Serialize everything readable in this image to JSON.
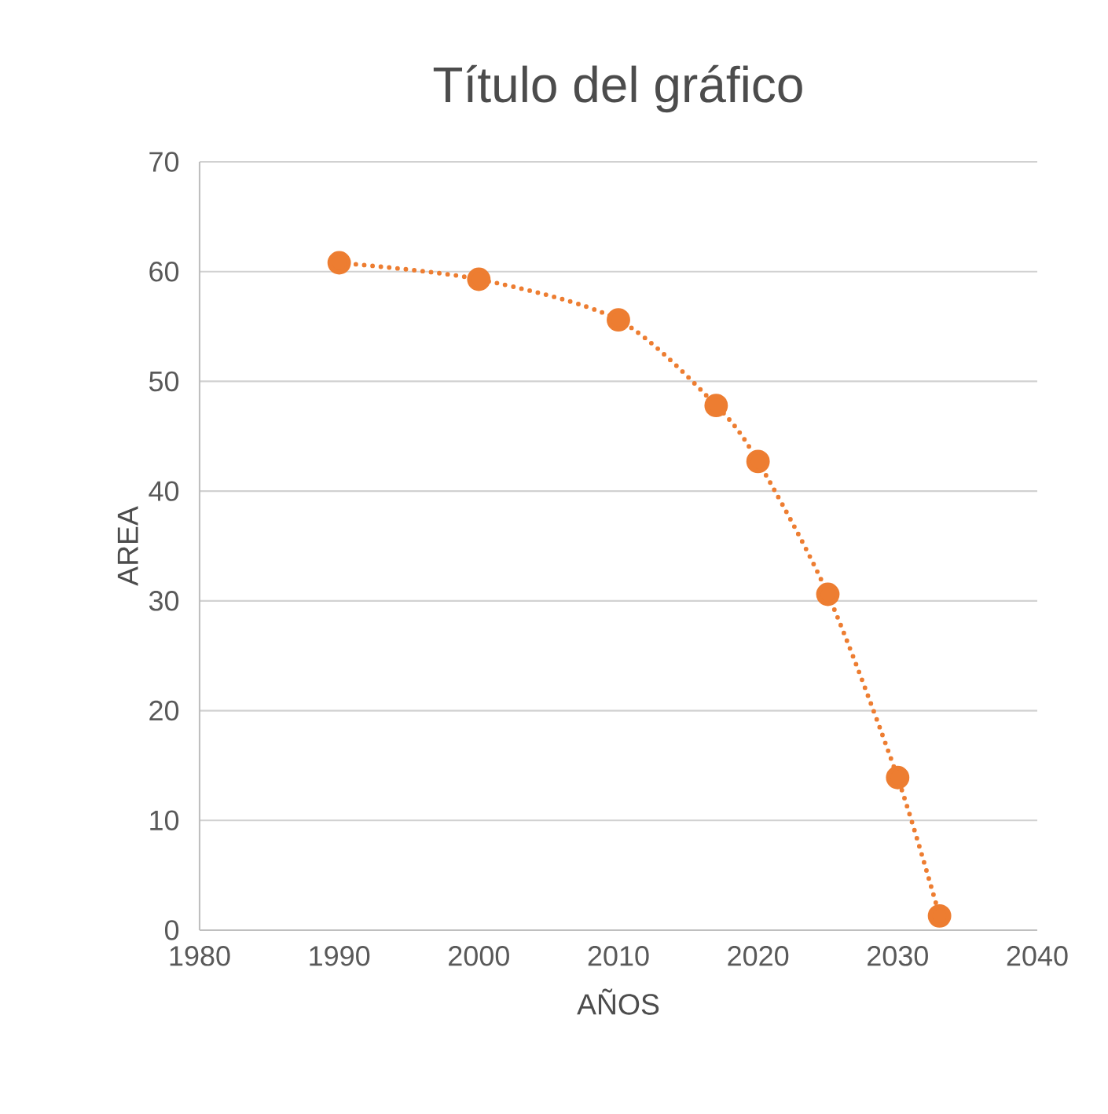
{
  "chart_data": {
    "type": "line",
    "title": "Título del gráfico",
    "xlabel": "AÑOS",
    "ylabel": "AREA",
    "x": [
      1990,
      2000,
      2010,
      2017,
      2020,
      2025,
      2030,
      2033
    ],
    "series": [
      {
        "color": "#ed7d31",
        "values": [
          60.8,
          59.3,
          55.6,
          47.8,
          42.7,
          30.6,
          13.9,
          1.3
        ]
      }
    ],
    "xlim": [
      1980,
      2040
    ],
    "ylim": [
      0,
      70
    ],
    "xticks": [
      1980,
      1990,
      2000,
      2010,
      2020,
      2030,
      2040
    ],
    "yticks": [
      0,
      10,
      20,
      30,
      40,
      50,
      60,
      70
    ],
    "grid": "y",
    "marker": "circle",
    "line_style": "dotted"
  }
}
